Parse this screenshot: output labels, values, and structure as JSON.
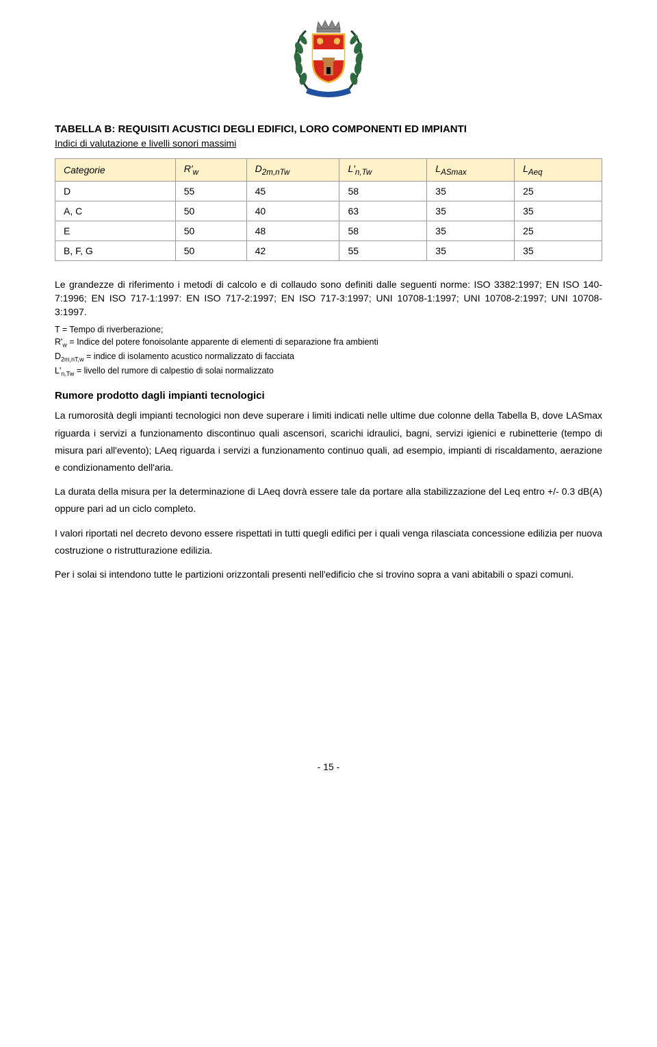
{
  "crest": {
    "wreath_color": "#2d6b3f",
    "wreath_dark": "#1a4528",
    "crown_color": "#888888",
    "shield_bg": "#d8261c",
    "shield_border": "#f0b030",
    "tower_color": "#c08040",
    "lion_color": "#f0c050",
    "ribbon_color": "#2050a0"
  },
  "title": "TABELLA B: REQUISITI ACUSTICI DEGLI EDIFICI, LORO COMPONENTI ED IMPIANTI",
  "subtitle": "Indici di valutazione e livelli sonori massimi",
  "table": {
    "header_bg": "#fdf1c8",
    "border_color": "#999999",
    "columns": [
      "Categorie",
      "R'w",
      "D2m,nTw",
      "L'n,Tw",
      "LASmax",
      "LAeq"
    ],
    "col_widths": [
      "22%",
      "13%",
      "17%",
      "16%",
      "16%",
      "16%"
    ],
    "rows": [
      [
        "D",
        "55",
        "45",
        "58",
        "35",
        "25"
      ],
      [
        "A, C",
        "50",
        "40",
        "63",
        "35",
        "35"
      ],
      [
        "E",
        "50",
        "48",
        "58",
        "35",
        "25"
      ],
      [
        "B, F, G",
        "50",
        "42",
        "55",
        "35",
        "35"
      ]
    ]
  },
  "intro": "Le grandezze di riferimento i metodi di calcolo e di collaudo sono definiti dalle seguenti norme: ISO 3382:1997; EN ISO 140-7:1996; EN ISO 717-1:1997: EN ISO 717-2:1997; EN ISO 717-3:1997; UNI 10708-1:1997; UNI 10708-2:1997; UNI 10708-3:1997.",
  "defs": {
    "l1_pre": "T = Tempo di riverberazione;",
    "l2_pre": "R'",
    "l2_sub": "w",
    "l2_post": " = Indice del potere fonoisolante apparente di elementi di separazione fra ambienti",
    "l3_pre": "D",
    "l3_sub": "2m,nT,w",
    "l3_post": " = indice di isolamento acustico normalizzato di facciata",
    "l4_pre": "L'",
    "l4_sub": "n,Tw",
    "l4_post": " = livello del rumore di calpestio di solai normalizzato"
  },
  "section_head": "Rumore prodotto dagli impianti tecnologici",
  "p1": "La rumorosità degli impianti tecnologici non deve superare i limiti indicati nelle ultime due colonne della Tabella B, dove LASmax riguarda i servizi a funzionamento discontinuo quali ascensori, scarichi idraulici, bagni, servizi igienici e rubinetterie (tempo di misura pari all'evento); LAeq riguarda i servizi a funzionamento continuo quali, ad esempio, impianti di riscaldamento, aerazione e condizionamento dell'aria.",
  "p2": "La durata della misura per la determinazione di LAeq dovrà essere tale da portare alla stabilizzazione del Leq entro +/- 0.3 dB(A) oppure pari ad un ciclo completo.",
  "p3": "I valori riportati nel decreto devono essere rispettati in tutti quegli edifici per i quali venga rilasciata concessione edilizia per nuova costruzione o ristrutturazione edilizia.",
  "p4": "Per i solai si intendono tutte le partizioni orizzontali presenti nell'edificio che si trovino sopra a vani abitabili o spazi comuni.",
  "pagenum": "- 15 -"
}
